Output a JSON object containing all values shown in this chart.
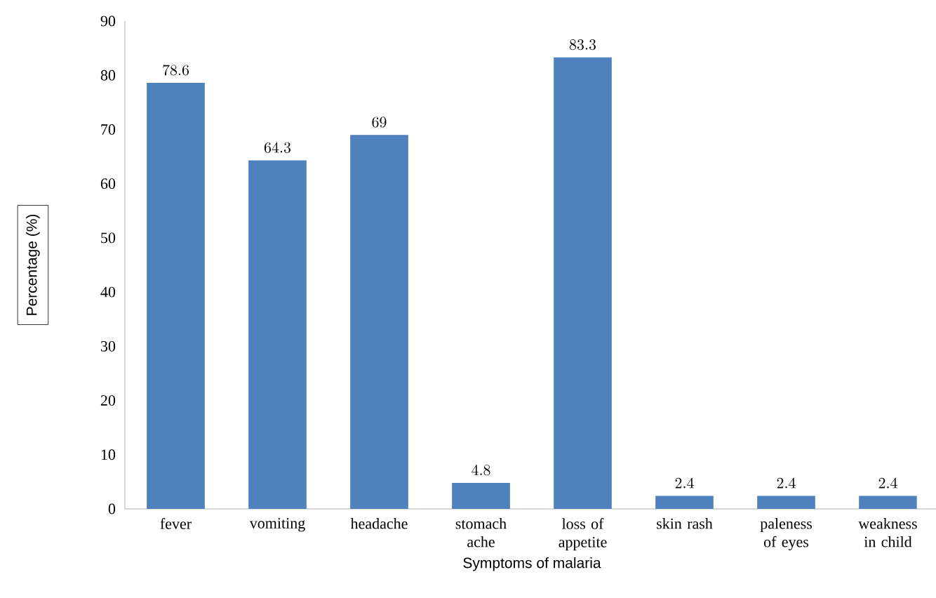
{
  "chart_data": {
    "type": "bar",
    "xlabel": "Symptoms of malaria",
    "ylabel": "Percentage (%)",
    "categories": [
      "fever",
      "vomiting",
      "headache",
      "stomach ache",
      "loss of appetite",
      "skin rash",
      "paleness of eyes",
      "weakness in child"
    ],
    "values": [
      78.6,
      64.3,
      69,
      4.8,
      83.3,
      2.4,
      2.4,
      2.4
    ],
    "color": "#4f81bd",
    "ylim": [
      0,
      90
    ],
    "yticks": [
      0,
      10,
      20,
      30,
      40,
      50,
      60,
      70,
      80,
      90
    ],
    "grid": false,
    "data_labels": true
  }
}
